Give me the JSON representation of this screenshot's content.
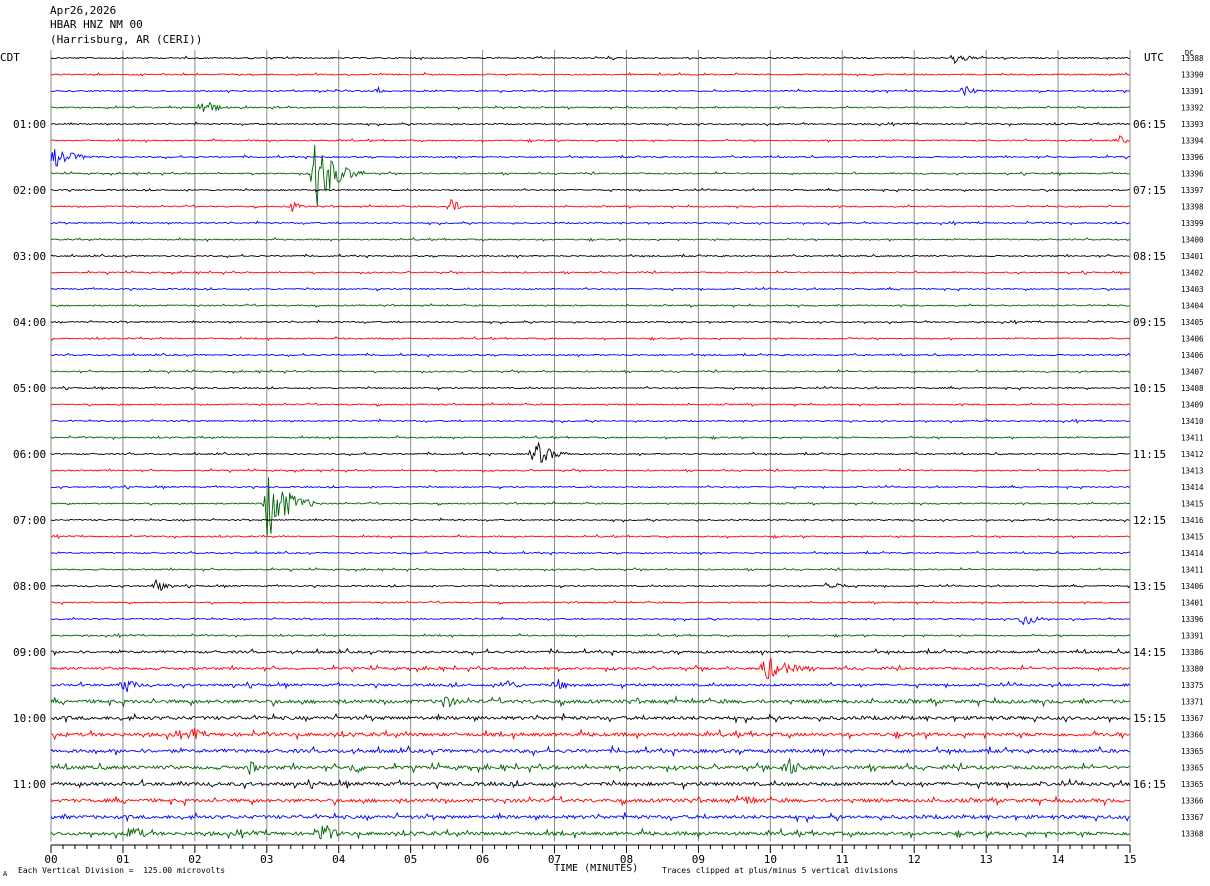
{
  "header": {
    "date": "Apr26,2026",
    "station": "HBAR HNZ NM 00",
    "location": "(Harrisburg, AR (CERI))"
  },
  "footer": {
    "scale_note": "Each Vertical Division =  125.00 microvolts",
    "xaxis_label": "TIME (MINUTES)",
    "clip_note": "Traces clipped at plus/minus 5 vertical divisions",
    "corner_mark": "A"
  },
  "chart_data": {
    "type": "line",
    "title": "",
    "xlabel": "TIME (MINUTES)",
    "left_axis_label": "CDT",
    "right_axis_label": "UTC",
    "dc_label": "DC",
    "xlim": [
      0,
      15
    ],
    "x_ticks": [
      "00",
      "01",
      "02",
      "03",
      "04",
      "05",
      "06",
      "07",
      "08",
      "09",
      "10",
      "11",
      "12",
      "13",
      "14",
      "15"
    ],
    "grid": true,
    "trace_colors": [
      "#000000",
      "#ff0000",
      "#0000ff",
      "#006400"
    ],
    "left_time_labels": [
      {
        "row": 4,
        "label": "01:00"
      },
      {
        "row": 8,
        "label": "02:00"
      },
      {
        "row": 12,
        "label": "03:00"
      },
      {
        "row": 16,
        "label": "04:00"
      },
      {
        "row": 20,
        "label": "05:00"
      },
      {
        "row": 24,
        "label": "06:00"
      },
      {
        "row": 28,
        "label": "07:00"
      },
      {
        "row": 32,
        "label": "08:00"
      },
      {
        "row": 36,
        "label": "09:00"
      },
      {
        "row": 40,
        "label": "10:00"
      },
      {
        "row": 44,
        "label": "11:00"
      }
    ],
    "right_time_labels": [
      {
        "row": 4,
        "label": "06:15"
      },
      {
        "row": 8,
        "label": "07:15"
      },
      {
        "row": 12,
        "label": "08:15"
      },
      {
        "row": 16,
        "label": "09:15"
      },
      {
        "row": 20,
        "label": "10:15"
      },
      {
        "row": 24,
        "label": "11:15"
      },
      {
        "row": 28,
        "label": "12:15"
      },
      {
        "row": 32,
        "label": "13:15"
      },
      {
        "row": 36,
        "label": "14:15"
      },
      {
        "row": 40,
        "label": "15:15"
      },
      {
        "row": 44,
        "label": "16:15"
      }
    ],
    "dc_values": [
      13388,
      13390,
      13391,
      13392,
      13393,
      13394,
      13396,
      13396,
      13397,
      13398,
      13399,
      13400,
      13401,
      13402,
      13403,
      13404,
      13405,
      13406,
      13406,
      13407,
      13408,
      13409,
      13410,
      13411,
      13412,
      13413,
      13414,
      13415,
      13416,
      13415,
      13414,
      13411,
      13406,
      13401,
      13396,
      13391,
      13386,
      13380,
      13375,
      13371,
      13367,
      13366,
      13365,
      13365,
      13365,
      13366,
      13367,
      13368
    ],
    "events": [
      {
        "row": 0,
        "minute": 12.55,
        "amplitude": 7,
        "duration": 0.5
      },
      {
        "row": 2,
        "minute": 4.55,
        "amplitude": 7,
        "duration": 0.1
      },
      {
        "row": 2,
        "minute": 12.7,
        "amplitude": 8,
        "duration": 0.3
      },
      {
        "row": 3,
        "minute": 2.1,
        "amplitude": 12,
        "duration": 0.4
      },
      {
        "row": 5,
        "minute": 14.85,
        "amplitude": 5,
        "duration": 0.3
      },
      {
        "row": 6,
        "minute": 0.02,
        "amplitude": 12,
        "duration": 0.7
      },
      {
        "row": 7,
        "minute": 3.65,
        "amplitude": 42,
        "duration": 0.7
      },
      {
        "row": 9,
        "minute": 3.35,
        "amplitude": 6,
        "duration": 0.3
      },
      {
        "row": 9,
        "minute": 5.55,
        "amplitude": 10,
        "duration": 0.3
      },
      {
        "row": 24,
        "minute": 6.7,
        "amplitude": 16,
        "duration": 0.6
      },
      {
        "row": 27,
        "minute": 3.0,
        "amplitude": 40,
        "duration": 0.7
      },
      {
        "row": 32,
        "minute": 1.45,
        "amplitude": 8,
        "duration": 0.4
      },
      {
        "row": 32,
        "minute": 10.8,
        "amplitude": 8,
        "duration": 0.4
      },
      {
        "row": 34,
        "minute": 13.5,
        "amplitude": 9,
        "duration": 0.5
      },
      {
        "row": 37,
        "minute": 9.9,
        "amplitude": 14,
        "duration": 0.9
      },
      {
        "row": 38,
        "minute": 1.0,
        "amplitude": 11,
        "duration": 0.4
      },
      {
        "row": 38,
        "minute": 6.3,
        "amplitude": 9,
        "duration": 0.4
      },
      {
        "row": 38,
        "minute": 7.0,
        "amplitude": 9,
        "duration": 0.4
      },
      {
        "row": 39,
        "minute": 5.45,
        "amplitude": 10,
        "duration": 0.4
      },
      {
        "row": 41,
        "minute": 1.95,
        "amplitude": 10,
        "duration": 0.3
      },
      {
        "row": 43,
        "minute": 2.75,
        "amplitude": 10,
        "duration": 0.3
      },
      {
        "row": 43,
        "minute": 4.2,
        "amplitude": 11,
        "duration": 0.3
      },
      {
        "row": 43,
        "minute": 10.2,
        "amplitude": 14,
        "duration": 0.5
      },
      {
        "row": 45,
        "minute": 9.6,
        "amplitude": 6,
        "duration": 0.8
      },
      {
        "row": 47,
        "minute": 1.1,
        "amplitude": 13,
        "duration": 0.4
      },
      {
        "row": 47,
        "minute": 3.75,
        "amplitude": 16,
        "duration": 0.4
      }
    ]
  }
}
